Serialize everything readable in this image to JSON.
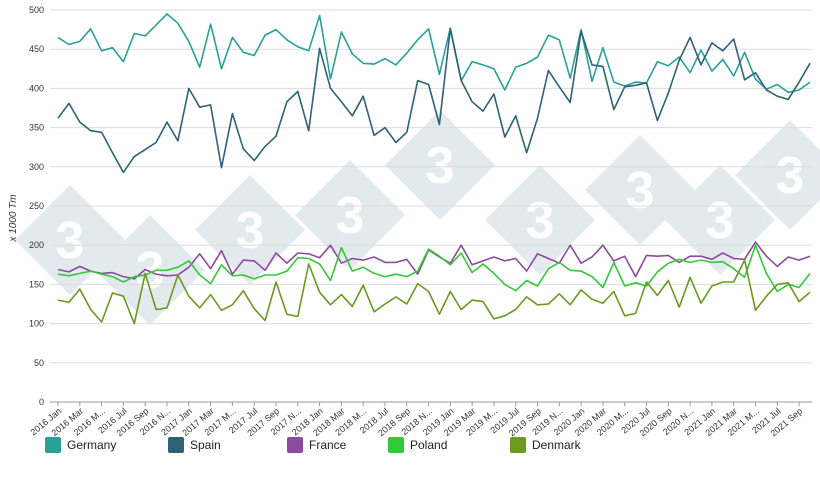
{
  "chart_data": {
    "type": "line",
    "ylabel": "x 1000 Tm",
    "ylim": [
      0,
      500
    ],
    "yticks": [
      "0",
      "50",
      "100",
      "150",
      "200",
      "250",
      "300",
      "350",
      "400",
      "450",
      "500"
    ],
    "grid": true,
    "legend_position": "bottom",
    "xtick_labels": [
      "2016 Jan",
      "2016 Mar",
      "2016 M...",
      "2016 Jul",
      "2016 Sep",
      "2016 N...",
      "2017 Jan",
      "2017 Mar",
      "2017 M...",
      "2017 Jul",
      "2017 Sep",
      "2017 N...",
      "2018 Jan",
      "2018 Mar",
      "2018 M...",
      "2018 Jul",
      "2018 Sep",
      "2018 N...",
      "2019 Jan",
      "2019 Mar",
      "2019 M...",
      "2019 Jul",
      "2019 Sep",
      "2019 N...",
      "2020 Jan",
      "2020 Mar",
      "2020 M...",
      "2020 Jul",
      "2020 Sep",
      "2020 N...",
      "2021 Jan",
      "2021 Mar",
      "2021 M...",
      "2021 Jul",
      "2021 Sep"
    ],
    "series": [
      {
        "name": "Germany",
        "color": "#2aa198",
        "values": [
          465,
          456,
          460,
          476,
          448,
          452,
          434,
          470,
          467,
          481,
          495,
          483,
          460,
          427,
          482,
          425,
          465,
          446,
          442,
          468,
          475,
          462,
          453,
          448,
          493,
          412,
          472,
          444,
          432,
          431,
          438,
          430,
          445,
          462,
          476,
          418,
          477,
          410,
          434,
          430,
          425,
          398,
          427,
          432,
          440,
          468,
          462,
          413,
          475,
          409,
          452,
          408,
          403,
          408,
          407,
          434,
          429,
          440,
          420,
          449,
          422,
          437,
          416,
          446,
          412,
          399,
          405,
          395,
          398,
          408
        ]
      },
      {
        "name": "Spain",
        "color": "#2e6278",
        "values": [
          362,
          381,
          357,
          346,
          344,
          318,
          293,
          313,
          322,
          331,
          357,
          333,
          400,
          376,
          379,
          299,
          368,
          323,
          308,
          326,
          339,
          383,
          396,
          346,
          451,
          400,
          383,
          365,
          390,
          340,
          350,
          331,
          344,
          410,
          405,
          354,
          476,
          410,
          383,
          371,
          393,
          338,
          365,
          318,
          362,
          423,
          402,
          382,
          473,
          430,
          428,
          373,
          402,
          404,
          407,
          359,
          394,
          436,
          465,
          430,
          458,
          448,
          463,
          411,
          420,
          398,
          390,
          386,
          408,
          432
        ]
      },
      {
        "name": "France",
        "color": "#8e4aa0",
        "values": [
          169,
          166,
          173,
          167,
          164,
          165,
          160,
          157,
          169,
          163,
          161,
          162,
          172,
          189,
          170,
          193,
          163,
          181,
          180,
          168,
          190,
          177,
          190,
          189,
          184,
          200,
          177,
          183,
          181,
          185,
          178,
          178,
          182,
          163,
          194,
          185,
          177,
          200,
          175,
          180,
          185,
          180,
          183,
          167,
          189,
          183,
          177,
          200,
          177,
          185,
          200,
          180,
          186,
          160,
          187,
          186,
          187,
          178,
          186,
          186,
          182,
          190,
          183,
          182,
          204,
          186,
          173,
          185,
          181,
          186
        ]
      },
      {
        "name": "Poland",
        "color": "#34c93a",
        "values": [
          163,
          161,
          164,
          167,
          163,
          160,
          153,
          160,
          162,
          168,
          168,
          172,
          180,
          162,
          151,
          175,
          161,
          162,
          157,
          162,
          162,
          167,
          184,
          183,
          176,
          155,
          197,
          167,
          172,
          164,
          160,
          163,
          160,
          167,
          195,
          186,
          175,
          190,
          165,
          176,
          164,
          150,
          142,
          155,
          148,
          170,
          178,
          168,
          167,
          160,
          146,
          178,
          148,
          152,
          148,
          166,
          177,
          182,
          178,
          181,
          178,
          179,
          170,
          159,
          200,
          164,
          141,
          150,
          146,
          164
        ]
      },
      {
        "name": "Denmark",
        "color": "#6a9a1f",
        "values": [
          130,
          127,
          144,
          118,
          102,
          139,
          135,
          100,
          164,
          118,
          120,
          162,
          135,
          120,
          137,
          117,
          124,
          142,
          119,
          104,
          153,
          112,
          109,
          176,
          140,
          124,
          137,
          122,
          149,
          115,
          125,
          134,
          125,
          151,
          141,
          112,
          141,
          118,
          130,
          128,
          106,
          110,
          118,
          134,
          124,
          125,
          138,
          124,
          143,
          131,
          126,
          141,
          110,
          113,
          153,
          136,
          155,
          121,
          159,
          126,
          148,
          153,
          153,
          181,
          117,
          135,
          150,
          152,
          128,
          140
        ]
      }
    ]
  }
}
